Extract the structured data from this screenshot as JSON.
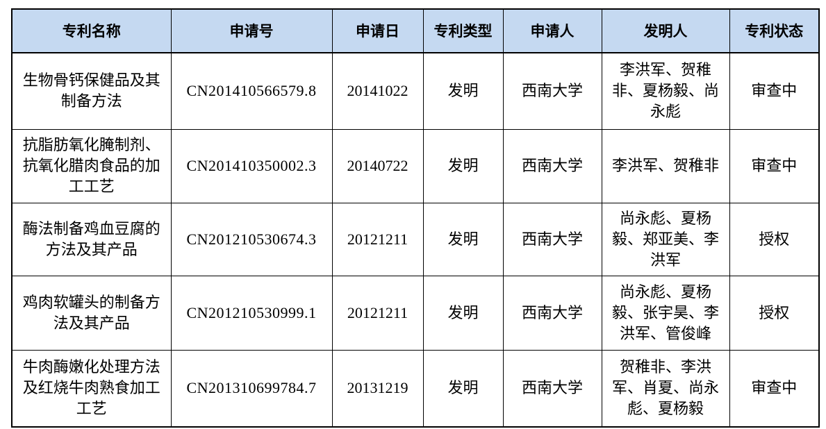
{
  "colors": {
    "header_bg": "#C5D9F1",
    "grid_border": "#000000",
    "text": "#000000",
    "page_bg": "#FFFFFF"
  },
  "table": {
    "columns": [
      {
        "key": "name",
        "label": "专利名称"
      },
      {
        "key": "app_no",
        "label": "申请号"
      },
      {
        "key": "app_date",
        "label": "申请日"
      },
      {
        "key": "type",
        "label": "专利类型"
      },
      {
        "key": "applicant",
        "label": "申请人"
      },
      {
        "key": "inventors",
        "label": "发明人"
      },
      {
        "key": "status",
        "label": "专利状态"
      }
    ],
    "rows": [
      {
        "name": "生物骨钙保健品及其制备方法",
        "app_no": "CN201410566579.8",
        "app_date": "20141022",
        "type": "发明",
        "applicant": "西南大学",
        "inventors": "李洪军、贺稚非、夏杨毅、尚永彪",
        "status": "审查中"
      },
      {
        "name": "抗脂肪氧化腌制剂、抗氧化腊肉食品的加工工艺",
        "app_no": "CN201410350002.3",
        "app_date": "20140722",
        "type": "发明",
        "applicant": "西南大学",
        "inventors": "李洪军、贺稚非",
        "status": "审查中"
      },
      {
        "name": "酶法制备鸡血豆腐的方法及其产品",
        "app_no": "CN201210530674.3",
        "app_date": "20121211",
        "type": "发明",
        "applicant": "西南大学",
        "inventors": "尚永彪、夏杨毅、郑亚美、李洪军",
        "status": "授权"
      },
      {
        "name": "鸡肉软罐头的制备方法及其产品",
        "app_no": "CN201210530999.1",
        "app_date": "20121211",
        "type": "发明",
        "applicant": "西南大学",
        "inventors": "尚永彪、夏杨毅、张宇昊、李洪军、管俊峰",
        "status": "授权"
      },
      {
        "name": "牛肉酶嫩化处理方法及红烧牛肉熟食加工工艺",
        "app_no": "CN201310699784.7",
        "app_date": "20131219",
        "type": "发明",
        "applicant": "西南大学",
        "inventors": "贺稚非、李洪军、肖夏、尚永彪、夏杨毅",
        "status": "审查中"
      }
    ]
  }
}
